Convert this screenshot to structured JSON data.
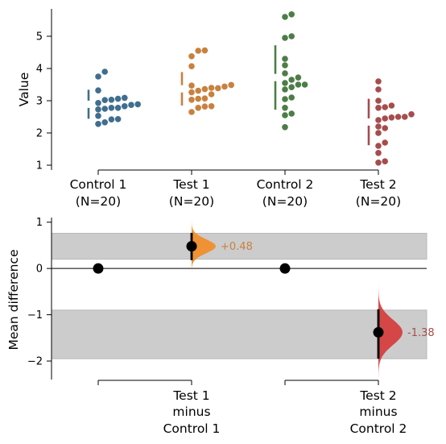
{
  "chart_data": [
    {
      "type": "scatter",
      "ylabel": "Value",
      "ylim": [
        0.85,
        5.85
      ],
      "yticks": [
        1,
        2,
        3,
        4,
        5
      ],
      "groups": [
        {
          "label_line1": "Control 1",
          "label_line2": "(N=20)",
          "color": "#3f6e8e",
          "mean": 2.89,
          "sd": 0.45,
          "values": [
            2.28,
            2.33,
            2.42,
            2.43,
            2.53,
            2.73,
            2.75,
            2.78,
            2.78,
            2.83,
            2.87,
            2.89,
            2.93,
            3.02,
            3.03,
            3.06,
            3.09,
            3.32,
            3.75,
            3.9
          ]
        },
        {
          "label_line1": "Test 1",
          "label_line2": "(N=20)",
          "color": "#c8813f",
          "mean": 3.37,
          "sd": 0.52,
          "values": [
            2.65,
            2.78,
            2.82,
            2.83,
            3.03,
            3.06,
            3.07,
            3.2,
            3.26,
            3.31,
            3.36,
            3.39,
            3.4,
            3.44,
            3.47,
            3.49,
            4.07,
            4.38,
            4.56,
            4.55
          ]
        },
        {
          "label_line1": "Control 2",
          "label_line2": "(N=20)",
          "color": "#4d7d47",
          "mean": 3.72,
          "sd": 1.0,
          "values": [
            2.18,
            2.55,
            2.6,
            2.78,
            3.05,
            3.1,
            3.35,
            3.42,
            3.5,
            3.5,
            3.55,
            3.65,
            3.72,
            3.85,
            4.1,
            4.3,
            4.95,
            5.0,
            5.6,
            5.68
          ]
        },
        {
          "label_line1": "Test 2",
          "label_line2": "(N=20)",
          "color": "#a64c4c",
          "mean": 2.34,
          "sd": 0.72,
          "values": [
            1.08,
            1.12,
            1.38,
            1.6,
            1.7,
            2.0,
            2.15,
            2.2,
            2.4,
            2.45,
            2.48,
            2.5,
            2.5,
            2.58,
            2.78,
            2.8,
            2.85,
            3.0,
            3.35,
            3.6
          ]
        }
      ]
    },
    {
      "type": "scatter",
      "ylabel": "Mean difference",
      "ylim": [
        -2.4,
        1.1
      ],
      "yticks": [
        1,
        0,
        -1,
        -2
      ],
      "ytick_labels": [
        "1",
        "0",
        "−1",
        "−2"
      ],
      "comparisons": [
        {
          "label_line1": "Test 1",
          "label_line2": "minus",
          "label_line3": "Control 1",
          "delta": 0.48,
          "delta_label": "+0.48",
          "ci": [
            0.18,
            0.77
          ],
          "band": [
            0.2,
            0.76
          ],
          "color": "#f28c28",
          "label_color": "#c8813f"
        },
        {
          "label_line1": "Test 2",
          "label_line2": "minus",
          "label_line3": "Control 2",
          "delta": -1.38,
          "delta_label": "-1.38",
          "ci": [
            -1.95,
            -0.88
          ],
          "band": [
            -1.95,
            -0.9
          ],
          "color": "#d63c3c",
          "label_color": "#a64c4c"
        }
      ]
    }
  ]
}
